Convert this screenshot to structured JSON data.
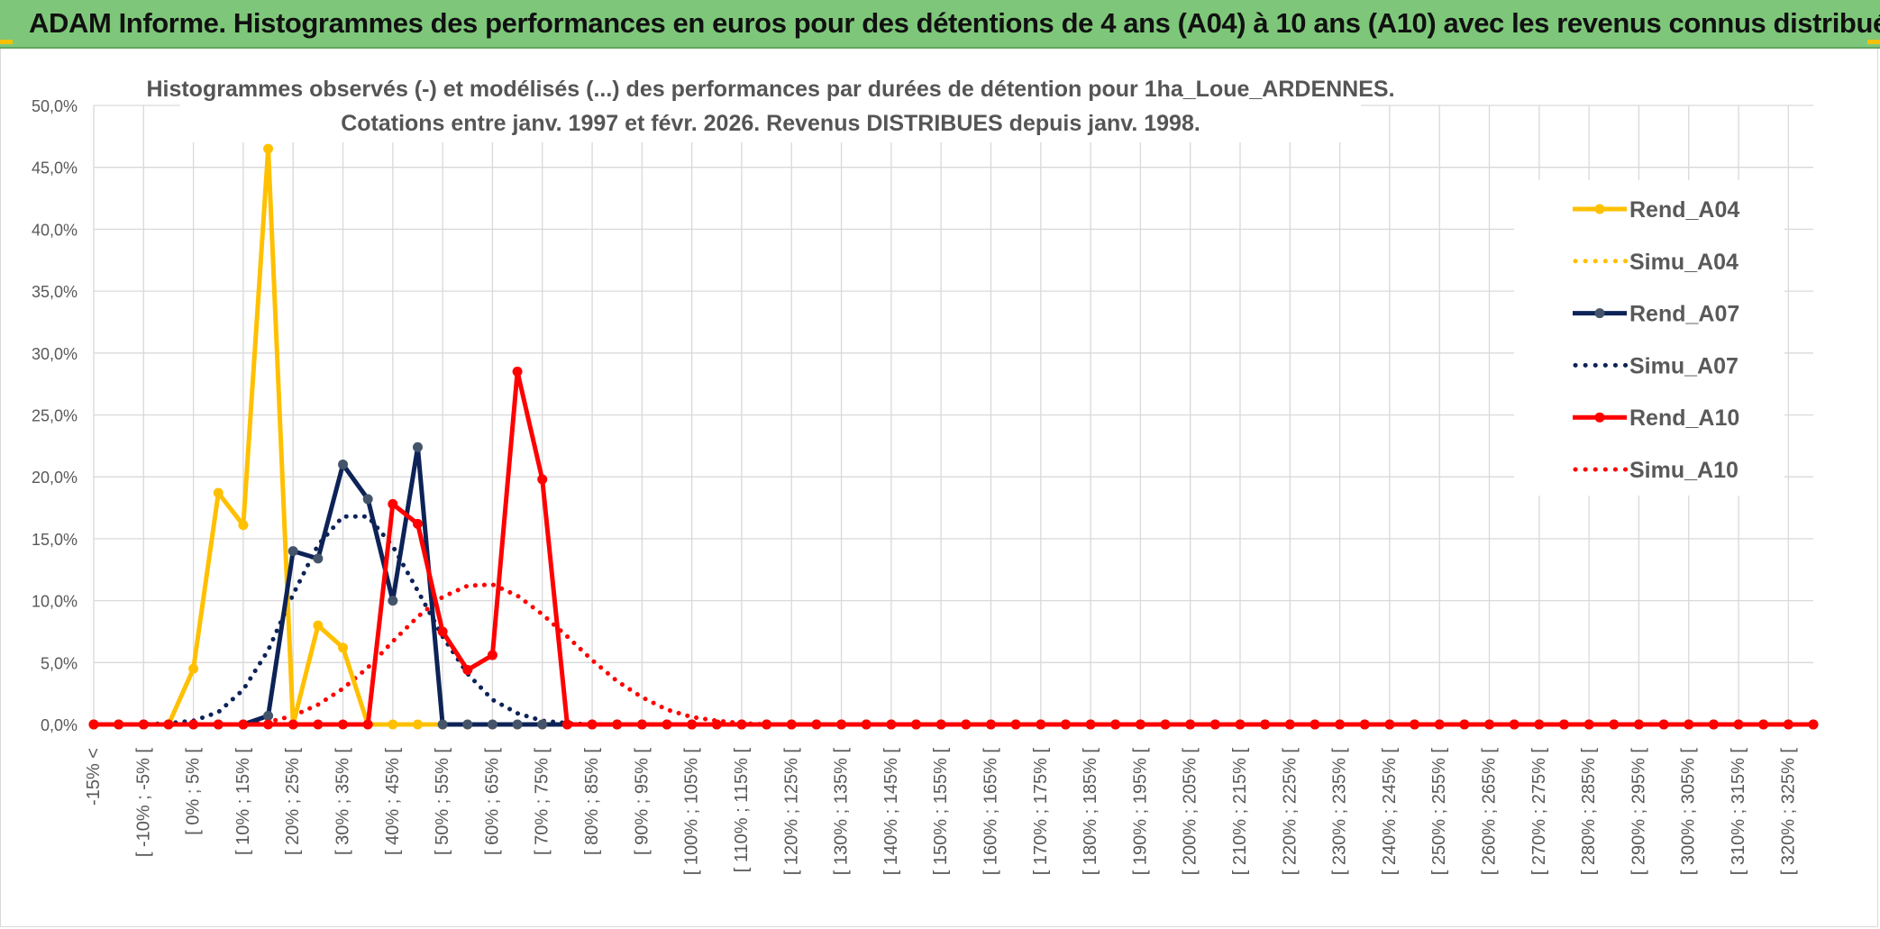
{
  "header": {
    "title": "ADAM Informe. Histogrammes des performances en euros pour des détentions de 4 ans (A04) à 10 ans (A10) avec les revenus connus distribués"
  },
  "colors": {
    "banner": "#7ec77a",
    "a04": "#ffc000",
    "a07": "#0d2357",
    "a07_marker": "#44546a",
    "a10": "#ff0000",
    "grid": "#d9d9d9"
  },
  "chart_data": {
    "type": "line",
    "title_line1": "Histogrammes observés (-) et modélisés (...) des performances par durées de détention pour 1ha_Loue_ARDENNES.",
    "title_line2": "Cotations entre janv. 1997 et févr. 2026. Revenus DISTRIBUES depuis janv. 1998.",
    "ylim": [
      0,
      50
    ],
    "y_ticks": [
      "0,0%",
      "5,0%",
      "10,0%",
      "15,0%",
      "20,0%",
      "25,0%",
      "30,0%",
      "35,0%",
      "40,0%",
      "45,0%",
      "50,0%"
    ],
    "x_tick_labels": [
      "-15% <",
      "[ -10% ; -5% [",
      "[ 0% ; 5% [",
      "[ 10% ; 15% [",
      "[ 20% ; 25% [",
      "[ 30% ; 35% [",
      "[ 40% ; 45% [",
      "[ 50% ; 55% [",
      "[ 60% ; 65% [",
      "[ 70% ; 75% [",
      "[ 80% ; 85% [",
      "[ 90% ; 95% [",
      "[ 100% ; 105% [",
      "[ 110% ; 115% [",
      "[ 120% ; 125% [",
      "[ 130% ; 135% [",
      "[ 140% ; 145% [",
      "[ 150% ; 155% [",
      "[ 160% ; 165% [",
      "[ 170% ; 175% [",
      "[ 180% ; 185% [",
      "[ 190% ; 195% [",
      "[ 200% ; 205% [",
      "[ 210% ; 215% [",
      "[ 220% ; 225% [",
      "[ 230% ; 235% [",
      "[ 240% ; 245% [",
      "[ 250% ; 255% [",
      "[ 260% ; 265% [",
      "[ 270% ; 275% [",
      "[ 280% ; 285% [",
      "[ 290% ; 295% [",
      "[ 300% ; 305% [",
      "[ 310% ; 315% [",
      "[ 320% ; 325% ["
    ],
    "n_categories": 70,
    "legend_position": "right",
    "series": [
      {
        "name": "Rend_A04",
        "style": "solid",
        "color": "#ffc000",
        "marker": "#ffc000",
        "values": [
          0,
          0,
          0,
          0,
          4.5,
          18.7,
          16.1,
          46.5,
          0,
          8,
          6.2,
          0,
          0,
          0,
          0
        ]
      },
      {
        "name": "Simu_A04",
        "style": "dotted",
        "color": "#ffc000",
        "values": []
      },
      {
        "name": "Rend_A07",
        "style": "solid",
        "color": "#0d2357",
        "marker": "#44546a",
        "values": [
          0,
          0,
          0,
          0,
          0,
          0,
          0,
          0.7,
          14,
          13.4,
          21,
          18.2,
          10,
          22.4,
          0,
          0,
          0,
          0,
          0,
          0,
          0
        ]
      },
      {
        "name": "Simu_A07",
        "style": "dotted",
        "color": "#0d2357",
        "values": [
          0,
          0,
          0,
          0.1,
          0.3,
          1,
          2.8,
          6,
          10.5,
          14.5,
          16.8,
          16.8,
          14.4,
          10.8,
          7.1,
          4.1,
          2,
          0.9,
          0.3,
          0.1,
          0,
          0,
          0
        ]
      },
      {
        "name": "Rend_A10",
        "style": "solid",
        "color": "#ff0000",
        "marker": "#ff0000",
        "values": [
          0,
          0,
          0,
          0,
          0,
          0,
          0,
          0,
          0,
          0,
          0,
          0,
          17.8,
          16.2,
          7.5,
          4.4,
          5.6,
          28.5,
          19.8,
          0
        ]
      },
      {
        "name": "Simu_A10",
        "style": "dotted",
        "color": "#ff0000",
        "values": [
          0,
          0,
          0,
          0,
          0,
          0,
          0,
          0.2,
          0.7,
          1.6,
          2.9,
          4.6,
          6.7,
          8.7,
          10.3,
          11.2,
          11.3,
          10.4,
          8.9,
          7.1,
          5.2,
          3.5,
          2.2,
          1.2,
          0.6,
          0.3,
          0.1,
          0,
          0
        ]
      }
    ]
  }
}
